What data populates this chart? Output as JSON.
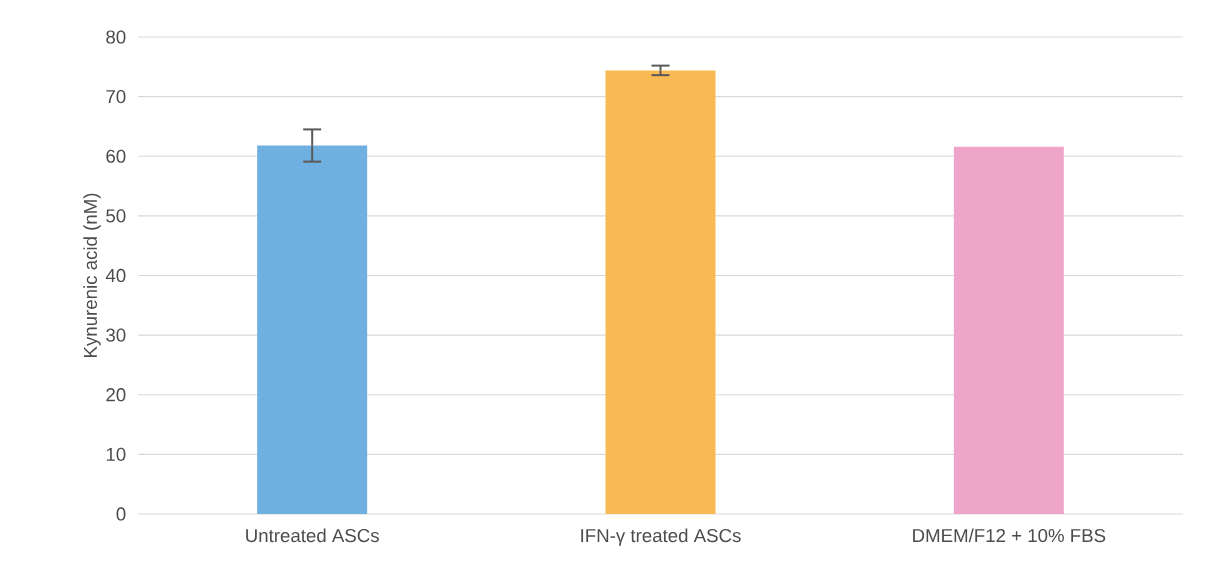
{
  "chart_data": {
    "type": "bar",
    "ylabel": "Kynurenic acid (nM)",
    "categories": [
      "Untreated ASCs",
      "IFN-γ treated ASCs",
      "DMEM/F12 + 10% FBS"
    ],
    "values": [
      61.8,
      74.4,
      61.6
    ],
    "errors": [
      2.7,
      0.8,
      null
    ],
    "colors": [
      "#70b0e0",
      "#f9b953",
      "#efa5c9"
    ],
    "ylim": [
      0,
      80
    ],
    "yticks": [
      0,
      10,
      20,
      30,
      40,
      50,
      60,
      70,
      80
    ],
    "grid": "y"
  }
}
